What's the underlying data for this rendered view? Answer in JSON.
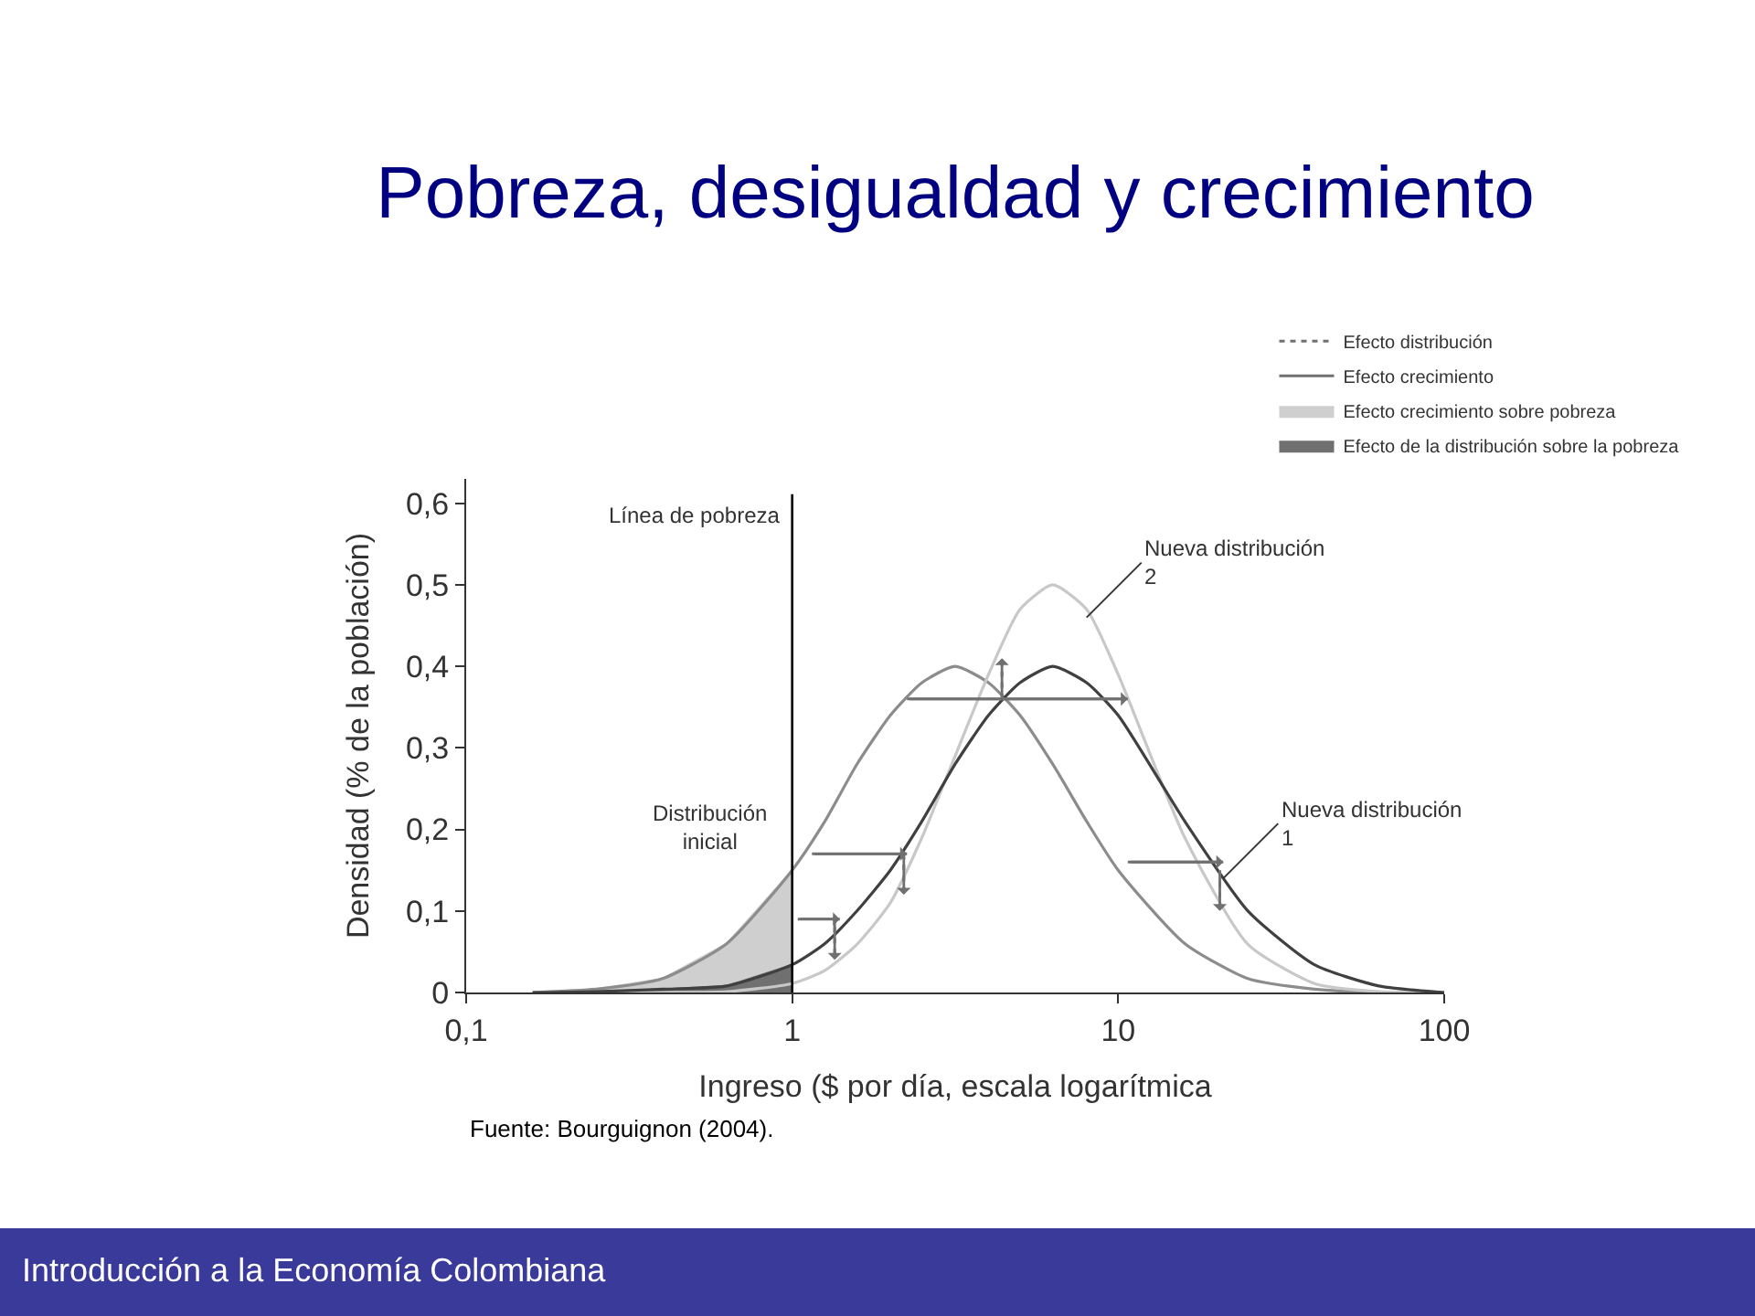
{
  "chart_data": {
    "type": "line",
    "title": "Pobreza, desigualdad y crecimiento",
    "xlabel": "Ingreso ($ por día, escala logarítmica",
    "ylabel": "Densidad (% de la población)",
    "log": "x",
    "xlim": [
      0.1,
      100
    ],
    "xticks": [
      {
        "value": 0.1,
        "label": "0,1"
      },
      1,
      10,
      100
    ],
    "ylim": [
      0,
      0.63
    ],
    "yticks": [
      0,
      {
        "value": 0.1,
        "label": "0,1"
      },
      {
        "value": 0.2,
        "label": "0,2"
      },
      {
        "value": 0.3,
        "label": "0,3"
      },
      {
        "value": 0.4,
        "label": "0,4"
      },
      {
        "value": 0.5,
        "label": "0,5"
      },
      {
        "value": 0.6,
        "label": "0,6"
      }
    ],
    "grid": false,
    "legend": "top right",
    "stacked": true,
    "x": [
      0.16,
      0.25,
      0.4,
      0.63,
      1,
      1.26,
      1.58,
      2,
      2.5,
      3.16,
      4,
      5,
      6.3,
      8,
      10,
      16,
      25,
      40,
      63,
      100
    ],
    "series": [
      {
        "type": "area",
        "name": "Efecto de la distribución sobre la pobreza",
        "color": "#707070",
        "x": [
          0.16,
          0.25,
          0.4,
          0.63,
          1
        ],
        "values": [
          0.0,
          0.001,
          0.004,
          0.008,
          0.034
        ]
      },
      {
        "type": "area",
        "name": "Efecto crecimiento sobre pobreza",
        "color": "#cfcfcf",
        "x": [
          0.16,
          0.25,
          0.4,
          0.63,
          1
        ],
        "values": [
          0.0,
          0.003,
          0.013,
          0.052,
          0.116
        ]
      },
      {
        "color": "#8c8c8c",
        "values": [
          0.0,
          0.004,
          0.017,
          0.06,
          0.15,
          0.21,
          0.28,
          0.34,
          0.38,
          0.4,
          0.38,
          0.34,
          0.28,
          0.21,
          0.15,
          0.06,
          0.017,
          0.004,
          0.0,
          0.0
        ]
      },
      {
        "color": "#c8c8c8",
        "values": [
          0.0,
          0.0,
          0.0,
          0.001,
          0.011,
          0.027,
          0.059,
          0.11,
          0.19,
          0.29,
          0.39,
          0.47,
          0.5,
          0.47,
          0.39,
          0.19,
          0.059,
          0.011,
          0.001,
          0.0
        ]
      },
      {
        "color": "#404040",
        "values": [
          0.0,
          0.001,
          0.004,
          0.008,
          0.034,
          0.06,
          0.1,
          0.15,
          0.21,
          0.28,
          0.34,
          0.38,
          0.4,
          0.38,
          0.34,
          0.21,
          0.1,
          0.034,
          0.008,
          0.0
        ]
      },
      {
        "name": "Efecto crecimiento",
        "color": "#707070",
        "line_style": "solid",
        "x": [
          1.15,
          2.25,
          null,
          1.04,
          1.4,
          null,
          2.25,
          10.7,
          null,
          10.7,
          21
        ],
        "values": [
          0.17,
          0.17,
          null,
          0.09,
          0.09,
          null,
          0.36,
          0.36,
          null,
          0.16,
          0.16
        ]
      },
      {
        "name": "Efecto distribución",
        "color": "#707070",
        "line_style": "dotted",
        "x": [
          1.35,
          1.35,
          null,
          2.2,
          2.2,
          null,
          4.4,
          4.4,
          null,
          20.5,
          20.5
        ],
        "values": [
          0.094,
          0.04,
          null,
          0.17,
          0.12,
          null,
          0.36,
          0.41,
          null,
          0.15,
          0.1
        ]
      }
    ],
    "ref_lines": [
      {
        "axis": "x",
        "value": 1,
        "label": "Línea de pobreza",
        "color": "#000000"
      }
    ],
    "annotations": [
      "Distribución inicial",
      {
        "text": "Nueva distribución 2",
        "x": 8,
        "y": 0.46
      },
      {
        "text": "Nueva distribución 1",
        "x": 21,
        "y": 0.14
      },
      "Fuente: Bourguignon (2004).",
      "Introducción a la Economía Colombiana"
    ]
  }
}
